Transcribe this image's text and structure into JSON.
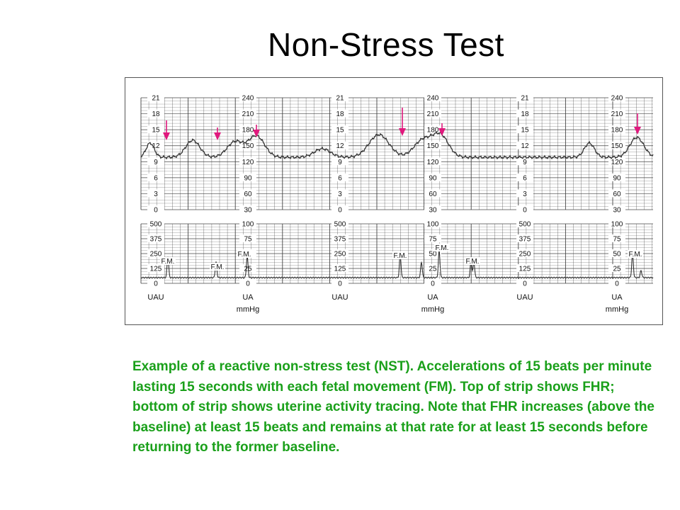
{
  "title": "Non-Stress Test",
  "figure": {
    "fhr_scale_left": [
      "21",
      "18",
      "15",
      "12",
      "9",
      "6",
      "3",
      "0"
    ],
    "fhr_scale_right": [
      "240",
      "210",
      "180",
      "150",
      "120",
      "90",
      "60",
      "30"
    ],
    "ua_scale_left": [
      "500",
      "375",
      "250",
      "125",
      "0"
    ],
    "ua_scale_right": [
      "100",
      "75",
      "50",
      "25",
      "0"
    ],
    "label_uau": "UAU",
    "label_ua": "UA",
    "label_mmhg": "mmHg",
    "fm_label": "F.M.",
    "accent_color": "#e0197d",
    "trace_color": "#333333",
    "grid_color": "#444444"
  },
  "caption": "Example of a reactive non-stress test (NST). Accelerations of 15 beats per minute lasting 15 seconds with each fetal movement (FM). Top of strip shows FHR; bottom of strip shows uterine activity tracing. Note that FHR increases (above the baseline) at least 15 beats and remains at that rate for at least 15 seconds before returning to the former baseline."
}
